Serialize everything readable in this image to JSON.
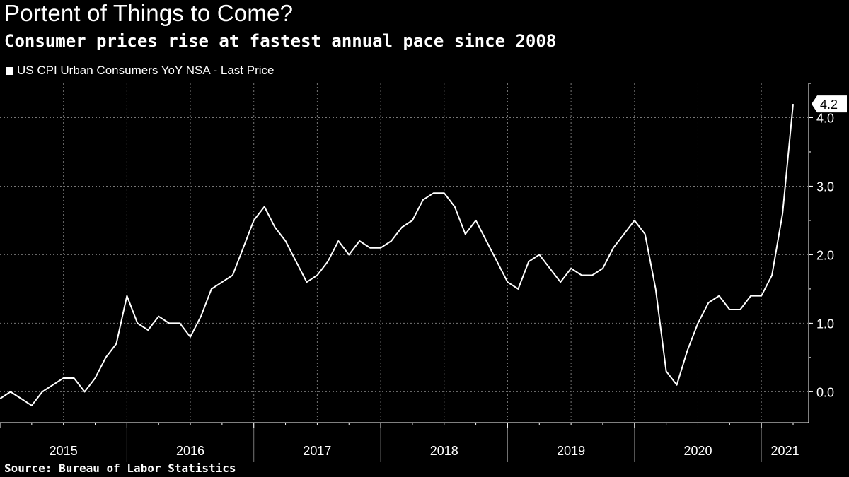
{
  "header": {
    "title": "Portent of Things to Come?",
    "subtitle": "Consumer prices rise at fastest annual pace since 2008"
  },
  "legend": {
    "label": "US CPI Urban Consumers YoY NSA - Last Price"
  },
  "footer": {
    "source": "Source: Bureau of Labor Statistics"
  },
  "colors": {
    "background": "#000000",
    "line": "#ffffff",
    "grid": "#777777"
  },
  "chart_data": {
    "type": "line",
    "title": "Portent of Things to Come?",
    "subtitle": "Consumer prices rise at fastest annual pace since 2008",
    "xlabel": "",
    "ylabel": "",
    "ylim": [
      -0.45,
      4.5
    ],
    "yticks": [
      0.0,
      1.0,
      2.0,
      3.0,
      4.0
    ],
    "ytick_labels": [
      "0.0",
      "1.0",
      "2.0",
      "3.0",
      "4.0"
    ],
    "grid": true,
    "x_start": {
      "year": 2015,
      "month": 1
    },
    "x_end": {
      "year": 2021,
      "month": 4
    },
    "years": [
      "2015",
      "2016",
      "2017",
      "2018",
      "2019",
      "2020",
      "2021"
    ],
    "last_value_label": "4.2",
    "series": [
      {
        "name": "US CPI Urban Consumers YoY NSA - Last Price",
        "values": [
          -0.1,
          0.0,
          -0.1,
          -0.2,
          0.0,
          0.1,
          0.2,
          0.2,
          0.0,
          0.2,
          0.5,
          0.7,
          1.4,
          1.0,
          0.9,
          1.1,
          1.0,
          1.0,
          0.8,
          1.1,
          1.5,
          1.6,
          1.7,
          2.1,
          2.5,
          2.7,
          2.4,
          2.2,
          1.9,
          1.6,
          1.7,
          1.9,
          2.2,
          2.0,
          2.2,
          2.1,
          2.1,
          2.2,
          2.4,
          2.5,
          2.8,
          2.9,
          2.9,
          2.7,
          2.3,
          2.5,
          2.2,
          1.9,
          1.6,
          1.5,
          1.9,
          2.0,
          1.8,
          1.6,
          1.8,
          1.7,
          1.7,
          1.8,
          2.1,
          2.3,
          2.5,
          2.3,
          1.5,
          0.3,
          0.1,
          0.6,
          1.0,
          1.3,
          1.4,
          1.2,
          1.2,
          1.4,
          1.4,
          1.7,
          2.6,
          4.2
        ]
      }
    ]
  }
}
